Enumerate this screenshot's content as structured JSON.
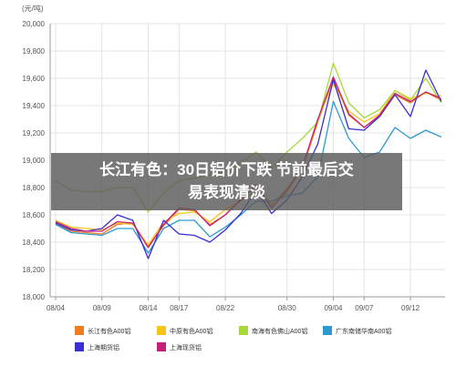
{
  "headline": {
    "line1": "长江有色：30日铝价下跌 节前最后交",
    "line2": "易表现清淡"
  },
  "chart_data": {
    "type": "line",
    "unit_label": "(元/吨)",
    "ylim": [
      18000,
      20000
    ],
    "y_ticks": [
      "18,000",
      "18,200",
      "18,400",
      "18,600",
      "18,800",
      "19,000",
      "19,200",
      "19,400",
      "19,600",
      "19,800",
      "20,000"
    ],
    "x_ticks": [
      "08/04",
      "08/09",
      "08/14",
      "08/17",
      "08/22",
      "08/30",
      "09/04",
      "09/07",
      "09/12"
    ],
    "x_tick_positions": [
      0,
      3,
      6,
      8,
      11,
      15,
      18,
      20,
      23
    ],
    "x_count": 26,
    "grid": true,
    "legend_position": "bottom",
    "series": [
      {
        "name": "长江有色A00铝",
        "color": "#f07c22",
        "values": [
          18540,
          18480,
          18470,
          18460,
          18530,
          18540,
          18370,
          18520,
          18640,
          18630,
          18530,
          18600,
          18720,
          18810,
          18670,
          18790,
          18940,
          19280,
          19600,
          19330,
          19240,
          19320,
          19480,
          19420,
          19500,
          19440
        ]
      },
      {
        "name": "中原有色A00铝",
        "color": "#f5c518",
        "values": [
          18560,
          18510,
          18500,
          18490,
          18540,
          18530,
          18380,
          18550,
          18610,
          18620,
          18550,
          18640,
          18700,
          18780,
          18680,
          18760,
          18950,
          19300,
          19560,
          19360,
          19280,
          19340,
          19510,
          19450,
          19490,
          19470
        ]
      },
      {
        "name": "南海有色佛山A00铝",
        "color": "#a8d83c",
        "values": [
          18850,
          18780,
          18770,
          18770,
          18800,
          18800,
          18620,
          18760,
          18850,
          18870,
          18890,
          18920,
          18980,
          19060,
          18940,
          19060,
          19160,
          19280,
          19710,
          19420,
          19310,
          19370,
          19510,
          19440,
          19600,
          19420
        ]
      },
      {
        "name": "广东南储华南A00铝",
        "color": "#2e9ad0",
        "values": [
          18530,
          18470,
          18460,
          18450,
          18500,
          18500,
          18320,
          18500,
          18560,
          18560,
          18440,
          18510,
          18600,
          18700,
          18700,
          18740,
          18760,
          18880,
          19430,
          19160,
          19020,
          19060,
          19240,
          19160,
          19220,
          19170
        ]
      },
      {
        "name": "上海期货铝",
        "color": "#3a2fd0",
        "values": [
          18540,
          18490,
          18480,
          18500,
          18600,
          18560,
          18280,
          18560,
          18460,
          18450,
          18400,
          18490,
          18610,
          18780,
          18610,
          18710,
          18880,
          19120,
          19590,
          19230,
          19220,
          19320,
          19480,
          19320,
          19660,
          19430
        ]
      },
      {
        "name": "上海现货铝",
        "color": "#c8207a",
        "values": [
          18550,
          18500,
          18480,
          18480,
          18550,
          18540,
          18360,
          18530,
          18650,
          18640,
          18520,
          18600,
          18710,
          18820,
          18650,
          18780,
          18950,
          19300,
          19610,
          19340,
          19240,
          19330,
          19490,
          19430,
          19500,
          19450
        ]
      }
    ]
  }
}
